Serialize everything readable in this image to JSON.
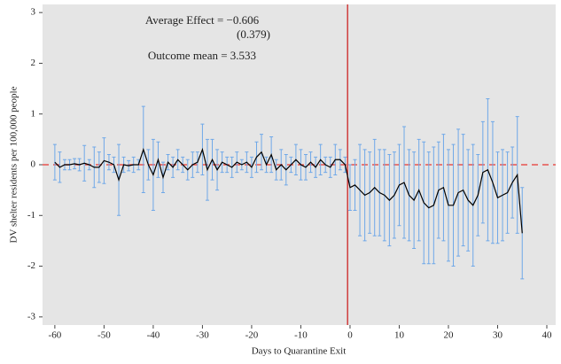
{
  "chart_data": {
    "type": "errorbar-line",
    "xlabel": "Days to Quarantine Exit",
    "ylabel": "DV shelter residents per 100,000 people",
    "annotations": [
      "Average Effect = −0.606",
      "(0.379)",
      "Outcome mean = 3.533"
    ],
    "x": [
      -60,
      -59,
      -58,
      -57,
      -56,
      -55,
      -54,
      -53,
      -52,
      -51,
      -50,
      -49,
      -48,
      -47,
      -46,
      -45,
      -44,
      -43,
      -42,
      -41,
      -40,
      -39,
      -38,
      -37,
      -36,
      -35,
      -34,
      -33,
      -32,
      -31,
      -30,
      -29,
      -28,
      -27,
      -26,
      -25,
      -24,
      -23,
      -22,
      -21,
      -20,
      -19,
      -18,
      -17,
      -16,
      -15,
      -14,
      -13,
      -12,
      -11,
      -10,
      -9,
      -8,
      -7,
      -6,
      -5,
      -4,
      -3,
      -2,
      -1,
      0,
      1,
      2,
      3,
      4,
      5,
      6,
      7,
      8,
      9,
      10,
      11,
      12,
      13,
      14,
      15,
      16,
      17,
      18,
      19,
      20,
      21,
      22,
      23,
      24,
      25,
      26,
      27,
      28,
      29,
      30,
      31,
      32,
      33,
      34,
      35
    ],
    "values": [
      0.05,
      -0.05,
      0.0,
      0.0,
      0.02,
      0.0,
      0.03,
      0.0,
      -0.05,
      -0.05,
      0.08,
      0.05,
      0.0,
      -0.3,
      0.0,
      -0.02,
      0.0,
      0.0,
      0.3,
      0.0,
      -0.2,
      0.1,
      -0.25,
      0.05,
      -0.05,
      0.1,
      0.0,
      -0.1,
      0.0,
      0.05,
      0.3,
      -0.1,
      0.1,
      -0.1,
      0.05,
      0.0,
      -0.05,
      0.05,
      0.0,
      0.05,
      -0.05,
      0.15,
      0.25,
      0.0,
      0.2,
      -0.1,
      0.0,
      -0.1,
      0.0,
      0.1,
      0.0,
      -0.05,
      0.05,
      -0.05,
      0.1,
      0.0,
      -0.05,
      0.1,
      0.1,
      0.0,
      -0.45,
      -0.4,
      -0.5,
      -0.6,
      -0.55,
      -0.45,
      -0.55,
      -0.6,
      -0.7,
      -0.6,
      -0.4,
      -0.35,
      -0.6,
      -0.7,
      -0.5,
      -0.75,
      -0.85,
      -0.8,
      -0.5,
      -0.45,
      -0.8,
      -0.8,
      -0.55,
      -0.5,
      -0.7,
      -0.8,
      -0.6,
      -0.15,
      -0.1,
      -0.35,
      -0.65,
      -0.6,
      -0.55,
      -0.35,
      -0.2,
      -1.35
    ],
    "errors": [
      0.35,
      0.3,
      0.1,
      0.1,
      0.1,
      0.12,
      0.35,
      0.1,
      0.4,
      0.3,
      0.45,
      0.15,
      0.15,
      0.7,
      0.15,
      0.1,
      0.15,
      0.1,
      0.85,
      0.3,
      0.7,
      0.35,
      0.3,
      0.15,
      0.2,
      0.2,
      0.15,
      0.2,
      0.25,
      0.2,
      0.5,
      0.6,
      0.4,
      0.4,
      0.2,
      0.15,
      0.2,
      0.2,
      0.1,
      0.2,
      0.2,
      0.3,
      0.35,
      0.15,
      0.35,
      0.2,
      0.3,
      0.3,
      0.15,
      0.3,
      0.3,
      0.25,
      0.2,
      0.2,
      0.3,
      0.15,
      0.2,
      0.3,
      0.2,
      0.15,
      0.45,
      0.5,
      0.9,
      0.9,
      0.8,
      0.95,
      0.85,
      0.9,
      0.9,
      0.85,
      0.8,
      1.1,
      0.9,
      0.95,
      1.0,
      1.2,
      1.1,
      1.15,
      0.95,
      1.05,
      1.1,
      1.2,
      1.25,
      1.1,
      1.0,
      1.2,
      0.8,
      1.0,
      1.4,
      1.2,
      0.9,
      0.9,
      0.8,
      0.7,
      1.15,
      0.9
    ],
    "color": "#000000",
    "error_color": "#6fa8e8",
    "hline": 0,
    "hline_color": "#e8534f",
    "vline": -0.5,
    "vline_color": "#cc2222",
    "xlim": [
      -62.5,
      41.8
    ],
    "ylim": [
      -3.16,
      3.16
    ],
    "xticks": [
      -60,
      -50,
      -40,
      -30,
      -20,
      -10,
      0,
      10,
      20,
      30,
      40
    ],
    "yticks": [
      -3,
      -2,
      -1,
      0,
      1,
      2,
      3
    ],
    "grid": false
  }
}
